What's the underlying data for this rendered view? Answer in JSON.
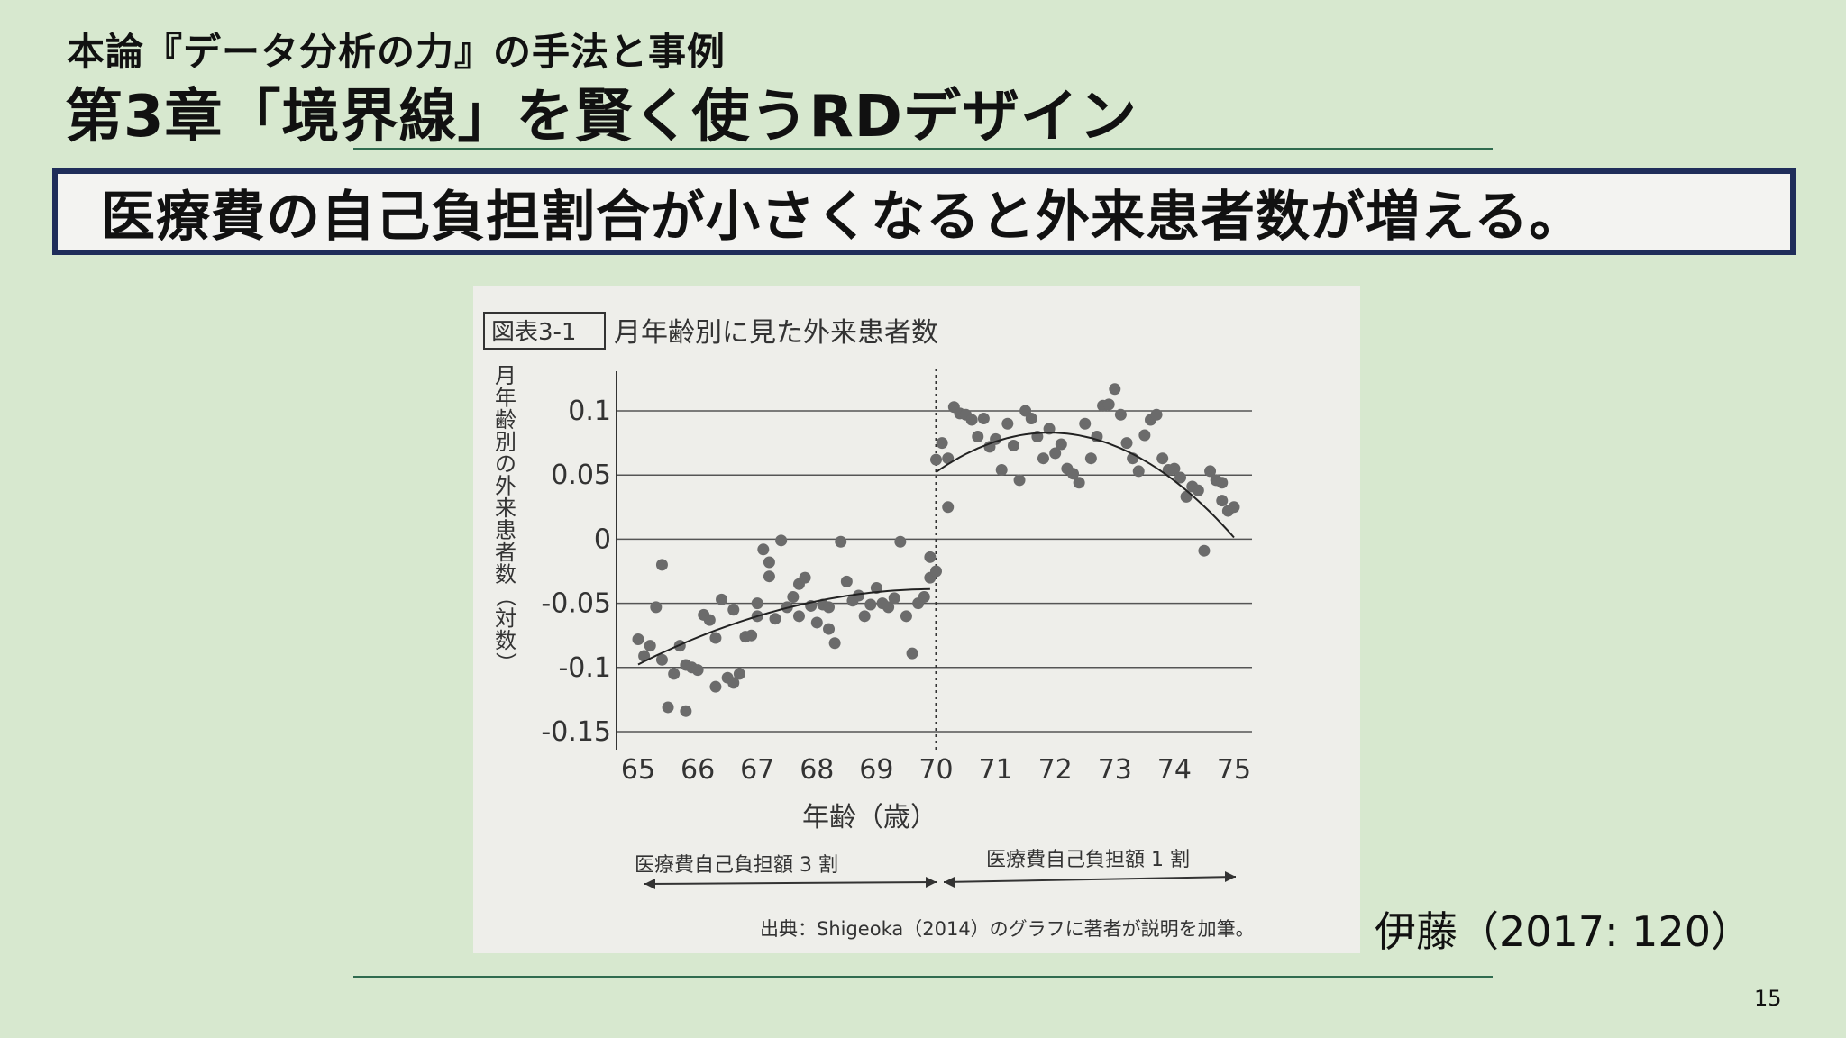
{
  "slide": {
    "subtitle": "本論『データ分析の力』の手法と事例",
    "title": "第3章「境界線」を賢く使うRDデザイン",
    "banner": "医療費の自己負担割合が小さくなると外来患者数が増える。",
    "citation": "伊藤（2017: 120）",
    "page_number": "15"
  },
  "figure": {
    "label": "図表3-1",
    "caption": "月年齢別に見た外来患者数",
    "ylabel": "月年齢別の外来患者数（対数）",
    "xlabel": "年齢（歳）",
    "left_note": "医療費自己負担額 3 割",
    "right_note": "医療費自己負担額 1 割",
    "source": "出典：Shigeoka（2014）のグラフに著者が説明を加筆。"
  },
  "chart_data": {
    "type": "scatter",
    "xlim": [
      65,
      75
    ],
    "ylim": [
      -0.15,
      0.1
    ],
    "x_ticks": [
      "65",
      "66",
      "67",
      "68",
      "69",
      "70",
      "71",
      "72",
      "73",
      "74",
      "75"
    ],
    "y_ticks": [
      "0.1",
      "0.05",
      "0",
      "-0.05",
      "-0.1",
      "-0.15"
    ],
    "y_tick_values": [
      0.1,
      0.05,
      0,
      -0.05,
      -0.1,
      -0.15
    ],
    "grid": "horizontal",
    "cutoff": 70,
    "points": [
      [
        65.0,
        -0.078
      ],
      [
        65.1,
        -0.091
      ],
      [
        65.2,
        -0.083
      ],
      [
        65.3,
        -0.053
      ],
      [
        65.4,
        -0.094
      ],
      [
        65.4,
        -0.02
      ],
      [
        65.5,
        -0.131
      ],
      [
        65.6,
        -0.105
      ],
      [
        65.7,
        -0.083
      ],
      [
        65.8,
        -0.134
      ],
      [
        65.8,
        -0.098
      ],
      [
        65.9,
        -0.1
      ],
      [
        66.0,
        -0.102
      ],
      [
        66.1,
        -0.059
      ],
      [
        66.2,
        -0.063
      ],
      [
        66.3,
        -0.115
      ],
      [
        66.3,
        -0.077
      ],
      [
        66.4,
        -0.047
      ],
      [
        66.5,
        -0.108
      ],
      [
        66.6,
        -0.112
      ],
      [
        66.6,
        -0.055
      ],
      [
        66.7,
        -0.105
      ],
      [
        66.8,
        -0.076
      ],
      [
        66.9,
        -0.075
      ],
      [
        67.0,
        -0.06
      ],
      [
        67.0,
        -0.05
      ],
      [
        67.1,
        -0.008
      ],
      [
        67.2,
        -0.018
      ],
      [
        67.2,
        -0.029
      ],
      [
        67.3,
        -0.062
      ],
      [
        67.4,
        -0.001
      ],
      [
        67.5,
        -0.053
      ],
      [
        67.6,
        -0.045
      ],
      [
        67.7,
        -0.035
      ],
      [
        67.7,
        -0.06
      ],
      [
        67.8,
        -0.03
      ],
      [
        67.9,
        -0.052
      ],
      [
        68.0,
        -0.065
      ],
      [
        68.1,
        -0.051
      ],
      [
        68.2,
        -0.07
      ],
      [
        68.2,
        -0.053
      ],
      [
        68.3,
        -0.081
      ],
      [
        68.4,
        -0.002
      ],
      [
        68.5,
        -0.033
      ],
      [
        68.6,
        -0.048
      ],
      [
        68.7,
        -0.044
      ],
      [
        68.8,
        -0.06
      ],
      [
        68.9,
        -0.051
      ],
      [
        69.0,
        -0.038
      ],
      [
        69.1,
        -0.05
      ],
      [
        69.2,
        -0.053
      ],
      [
        69.3,
        -0.046
      ],
      [
        69.4,
        -0.002
      ],
      [
        69.5,
        -0.06
      ],
      [
        69.6,
        -0.089
      ],
      [
        69.7,
        -0.05
      ],
      [
        69.8,
        -0.045
      ],
      [
        69.9,
        -0.014
      ],
      [
        69.9,
        -0.03
      ],
      [
        70.0,
        -0.025
      ],
      [
        70.0,
        0.062
      ],
      [
        70.1,
        0.075
      ],
      [
        70.2,
        0.063
      ],
      [
        70.2,
        0.025
      ],
      [
        70.3,
        0.103
      ],
      [
        70.4,
        0.098
      ],
      [
        70.5,
        0.097
      ],
      [
        70.6,
        0.093
      ],
      [
        70.7,
        0.08
      ],
      [
        70.8,
        0.094
      ],
      [
        70.9,
        0.072
      ],
      [
        71.0,
        0.078
      ],
      [
        71.1,
        0.054
      ],
      [
        71.2,
        0.09
      ],
      [
        71.3,
        0.073
      ],
      [
        71.4,
        0.046
      ],
      [
        71.5,
        0.1
      ],
      [
        71.6,
        0.094
      ],
      [
        71.7,
        0.08
      ],
      [
        71.8,
        0.063
      ],
      [
        71.9,
        0.086
      ],
      [
        72.0,
        0.067
      ],
      [
        72.1,
        0.074
      ],
      [
        72.2,
        0.055
      ],
      [
        72.3,
        0.051
      ],
      [
        72.4,
        0.044
      ],
      [
        72.5,
        0.09
      ],
      [
        72.6,
        0.063
      ],
      [
        72.7,
        0.08
      ],
      [
        72.8,
        0.104
      ],
      [
        72.9,
        0.105
      ],
      [
        73.0,
        0.117
      ],
      [
        73.1,
        0.097
      ],
      [
        73.2,
        0.075
      ],
      [
        73.3,
        0.063
      ],
      [
        73.4,
        0.053
      ],
      [
        73.5,
        0.081
      ],
      [
        73.6,
        0.093
      ],
      [
        73.7,
        0.097
      ],
      [
        73.8,
        0.063
      ],
      [
        73.9,
        0.054
      ],
      [
        74.0,
        0.055
      ],
      [
        74.1,
        0.048
      ],
      [
        74.2,
        0.033
      ],
      [
        74.3,
        0.041
      ],
      [
        74.4,
        0.038
      ],
      [
        74.5,
        -0.009
      ],
      [
        74.6,
        0.053
      ],
      [
        74.7,
        0.046
      ],
      [
        74.8,
        0.044
      ],
      [
        74.8,
        0.03
      ],
      [
        74.9,
        0.022
      ],
      [
        75.0,
        0.025
      ]
    ],
    "fit_left": {
      "a": -0.0389,
      "b": 0.0,
      "c": -0.00235,
      "vertex": 70.0
    },
    "fit_right": {
      "a": 0.083,
      "c": -0.0085,
      "vertex": 71.9
    }
  },
  "colors": {
    "background": "#d7e8cf",
    "banner_border": "#1f2d5a",
    "rule": "#2f6b4f",
    "points": "#6b6b6b"
  }
}
